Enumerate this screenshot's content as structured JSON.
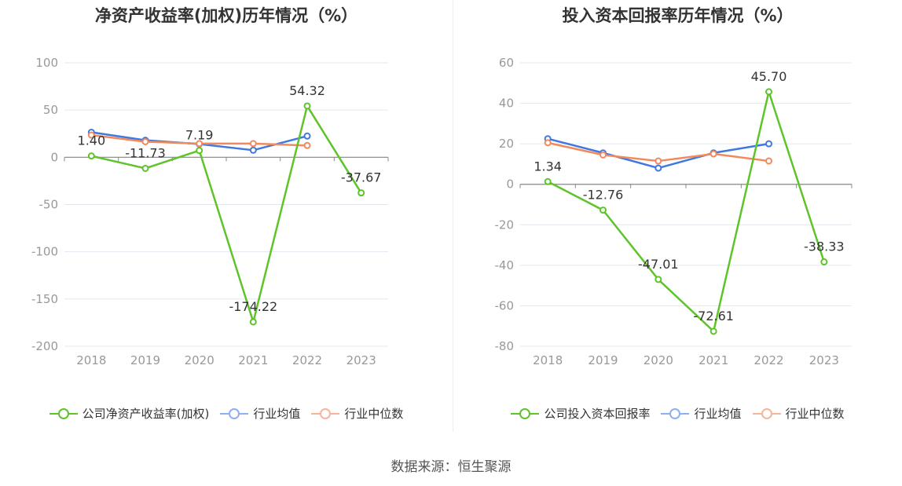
{
  "colors": {
    "company": "#5ec42a",
    "industry_avg": "#3f78e0",
    "industry_median": "#f2895e",
    "legend_avg": "#8fb0ee",
    "legend_median": "#f6b59a",
    "grid": "#e4e6ef",
    "axis": "#888888",
    "tick_text": "#999999",
    "label_text": "#333333"
  },
  "source": "数据来源：恒生聚源",
  "chart_data": [
    {
      "type": "line",
      "title": "净资产收益率(加权)历年情况（%）",
      "categories": [
        "2018",
        "2019",
        "2020",
        "2021",
        "2022",
        "2023"
      ],
      "ylim": [
        -200,
        100
      ],
      "yticks": [
        100,
        50,
        0,
        -50,
        -100,
        -150,
        -200
      ],
      "ytick_labels": [
        "100",
        "50",
        "0",
        "-50",
        "-100",
        "-150",
        "-200"
      ],
      "series": [
        {
          "key": "company",
          "name": "公司净资产收益率(加权)",
          "values": [
            1.4,
            -11.73,
            7.19,
            -174.22,
            54.32,
            -37.67
          ],
          "labels": [
            "1.40",
            "-11.73",
            "7.19",
            "-174.22",
            "54.32",
            "-37.67"
          ]
        },
        {
          "key": "industry_avg",
          "name": "行业均值",
          "values": [
            26.5,
            18.0,
            14.0,
            7.5,
            22.5,
            null
          ]
        },
        {
          "key": "industry_median",
          "name": "行业中位数",
          "values": [
            23.5,
            16.5,
            14.5,
            14.5,
            12.5,
            null
          ]
        }
      ]
    },
    {
      "type": "line",
      "title": "投入资本回报率历年情况（%）",
      "categories": [
        "2018",
        "2019",
        "2020",
        "2021",
        "2022",
        "2023"
      ],
      "ylim": [
        -80,
        60
      ],
      "yticks": [
        60,
        40,
        20,
        0,
        -20,
        -40,
        -60,
        -80
      ],
      "ytick_labels": [
        "60",
        "40",
        "20",
        "0",
        "-20",
        "-40",
        "-60",
        "-80"
      ],
      "series": [
        {
          "key": "company",
          "name": "公司投入资本回报率",
          "values": [
            1.34,
            -12.76,
            -47.01,
            -72.61,
            45.7,
            -38.33
          ],
          "labels": [
            "1.34",
            "-12.76",
            "-47.01",
            "-72.61",
            "45.70",
            "-38.33"
          ]
        },
        {
          "key": "industry_avg",
          "name": "行业均值",
          "values": [
            22.5,
            15.5,
            8.0,
            15.5,
            20.0,
            null
          ]
        },
        {
          "key": "industry_median",
          "name": "行业中位数",
          "values": [
            20.5,
            14.5,
            11.5,
            15.0,
            11.5,
            null
          ]
        }
      ]
    }
  ]
}
